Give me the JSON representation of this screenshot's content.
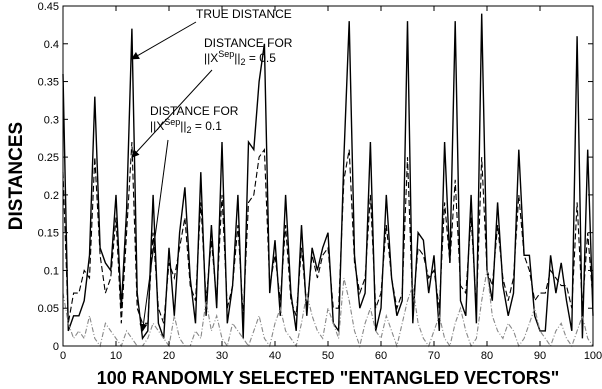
{
  "chart_data": {
    "type": "line",
    "xlabel": "100 RANDOMLY SELECTED \"ENTANGLED VECTORS\"",
    "ylabel": "DISTANCES",
    "xlim": [
      0,
      100
    ],
    "ylim": [
      0,
      0.45
    ],
    "xticks": [
      "0",
      "10",
      "20",
      "30",
      "40",
      "50",
      "60",
      "70",
      "80",
      "90",
      "100"
    ],
    "yticks": [
      "0",
      "0.05",
      "0.1",
      "0.15",
      "0.2",
      "0.25",
      "0.3",
      "0.35",
      "0.4",
      "0.45"
    ],
    "grid": false,
    "x": [
      0,
      1,
      2,
      3,
      4,
      5,
      6,
      7,
      8,
      9,
      10,
      11,
      12,
      13,
      14,
      15,
      16,
      17,
      18,
      19,
      20,
      21,
      22,
      23,
      24,
      25,
      26,
      27,
      28,
      29,
      30,
      31,
      32,
      33,
      34,
      35,
      36,
      37,
      38,
      39,
      40,
      41,
      42,
      43,
      44,
      45,
      46,
      47,
      48,
      49,
      50,
      51,
      52,
      53,
      54,
      55,
      56,
      57,
      58,
      59,
      60,
      61,
      62,
      63,
      64,
      65,
      66,
      67,
      68,
      69,
      70,
      71,
      72,
      73,
      74,
      75,
      76,
      77,
      78,
      79,
      80,
      81,
      82,
      83,
      84,
      85,
      86,
      87,
      88,
      89,
      90,
      91,
      92,
      93,
      94,
      95,
      96,
      97,
      98,
      99,
      100
    ],
    "series": [
      {
        "style": "solid",
        "color": "#000000",
        "values": [
          0.36,
          0.02,
          0.04,
          0.04,
          0.06,
          0.12,
          0.33,
          0.13,
          0.11,
          0.1,
          0.2,
          0.05,
          0.18,
          0.42,
          0.07,
          0.01,
          0.02,
          0.2,
          0.03,
          0.01,
          0.13,
          0.04,
          0.15,
          0.21,
          0.09,
          0.03,
          0.23,
          0.04,
          0.16,
          0.05,
          0.27,
          0.03,
          0.08,
          0.2,
          0.01,
          0.27,
          0.26,
          0.35,
          0.4,
          0.07,
          0.14,
          0.04,
          0.2,
          0.07,
          0.02,
          0.16,
          0.04,
          0.13,
          0.1,
          0.13,
          0.15,
          0.03,
          0.02,
          0.25,
          0.43,
          0.12,
          0.05,
          0.07,
          0.27,
          0.02,
          0.05,
          0.2,
          0.09,
          0.04,
          0.06,
          0.43,
          0.03,
          0.15,
          0.14,
          0.07,
          0.12,
          0.02,
          0.27,
          0.11,
          0.43,
          0.06,
          0.04,
          0.2,
          0.03,
          0.44,
          0.1,
          0.06,
          0.19,
          0.08,
          0.04,
          0.07,
          0.26,
          0.12,
          0.12,
          0.04,
          0.02,
          0.02,
          0.12,
          0.07,
          0.11,
          0.06,
          0.02,
          0.41,
          0.01,
          0.26,
          0.04
        ]
      },
      {
        "style": "dashed",
        "color": "#000000",
        "values": [
          0.23,
          0.03,
          0.07,
          0.07,
          0.1,
          0.09,
          0.25,
          0.12,
          0.07,
          0.09,
          0.17,
          0.03,
          0.15,
          0.27,
          0.05,
          0.03,
          0.03,
          0.15,
          0.05,
          0.03,
          0.11,
          0.09,
          0.13,
          0.17,
          0.08,
          0.06,
          0.19,
          0.06,
          0.14,
          0.06,
          0.2,
          0.05,
          0.08,
          0.16,
          0.04,
          0.19,
          0.2,
          0.25,
          0.26,
          0.08,
          0.12,
          0.06,
          0.16,
          0.06,
          0.04,
          0.13,
          0.05,
          0.12,
          0.09,
          0.12,
          0.13,
          0.05,
          0.05,
          0.22,
          0.26,
          0.11,
          0.07,
          0.09,
          0.2,
          0.05,
          0.07,
          0.16,
          0.09,
          0.05,
          0.07,
          0.25,
          0.05,
          0.13,
          0.12,
          0.09,
          0.1,
          0.05,
          0.19,
          0.11,
          0.22,
          0.08,
          0.07,
          0.17,
          0.05,
          0.25,
          0.1,
          0.08,
          0.16,
          0.09,
          0.06,
          0.09,
          0.2,
          0.12,
          0.1,
          0.06,
          0.07,
          0.07,
          0.1,
          0.09,
          0.08,
          0.08,
          0.05,
          0.19,
          0.05,
          0.15,
          0.06
        ]
      },
      {
        "style": "dashdot",
        "color": "#888888",
        "values": [
          0.07,
          0.03,
          0.01,
          0.02,
          0.01,
          0.04,
          0.01,
          0.0,
          0.03,
          0.02,
          0.01,
          0.0,
          0.02,
          0.01,
          0.0,
          0.0,
          0.01,
          0.03,
          0.02,
          0.01,
          0.0,
          0.04,
          0.01,
          0.0,
          0.0,
          0.02,
          0.01,
          0.06,
          0.02,
          0.04,
          0.01,
          0.0,
          0.03,
          0.02,
          0.01,
          0.0,
          0.02,
          0.04,
          0.01,
          0.0,
          0.03,
          0.05,
          0.02,
          0.01,
          0.0,
          0.03,
          0.07,
          0.04,
          0.02,
          0.01,
          0.05,
          0.03,
          0.01,
          0.09,
          0.06,
          0.02,
          0.0,
          0.03,
          0.05,
          0.02,
          0.01,
          0.04,
          0.02,
          0.0,
          0.03,
          0.06,
          0.08,
          0.03,
          0.01,
          0.0,
          0.02,
          0.04,
          0.01,
          0.0,
          0.03,
          0.05,
          0.02,
          0.0,
          0.01,
          0.06,
          0.1,
          0.04,
          0.02,
          0.01,
          0.03,
          0.02,
          0.0,
          0.01,
          0.03,
          0.05,
          0.02,
          0.01,
          0.0,
          0.02,
          0.03,
          0.01,
          0.0,
          0.02,
          0.04,
          0.01,
          0.0
        ]
      }
    ],
    "annotations": [
      {
        "lines": [
          "TRUE DISTANCE"
        ],
        "target_x": 13,
        "target_y": 0.38
      },
      {
        "lines": [
          "DISTANCE FOR",
          "||X^Sep||₂ = 0.5"
        ],
        "target_x": 13,
        "target_y": 0.25
      },
      {
        "lines": [
          "DISTANCE FOR",
          "||X^Sep||₂ = 0.1"
        ],
        "target_x": 15,
        "target_y": 0.02
      }
    ]
  }
}
